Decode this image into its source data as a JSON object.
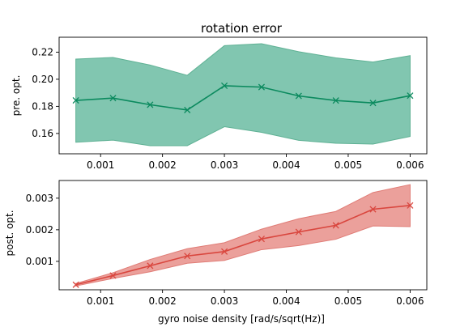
{
  "chart_data": [
    {
      "type": "line",
      "title": "rotation error",
      "xlabel": "",
      "ylabel": "pre. opt.",
      "xlim": [
        0.00033,
        0.00627
      ],
      "ylim": [
        0.145,
        0.231
      ],
      "xticks": [
        0.001,
        0.002,
        0.003,
        0.004,
        0.005,
        0.006
      ],
      "xtick_labels": [
        "0.001",
        "0.002",
        "0.003",
        "0.004",
        "0.005",
        "0.006"
      ],
      "yticks": [
        0.16,
        0.18,
        0.2,
        0.22
      ],
      "ytick_labels": [
        "0.16",
        "0.18",
        "0.20",
        "0.22"
      ],
      "grid": false,
      "colors": {
        "line": "#0b8a5e",
        "band": "#81c6b0",
        "band_edge": "#5fb194"
      },
      "series": [
        {
          "x": [
            0.0006,
            0.0012,
            0.0018,
            0.0024,
            0.003,
            0.0036,
            0.0042,
            0.0048,
            0.0054,
            0.006
          ],
          "values": [
            0.1844,
            0.1861,
            0.1812,
            0.1773,
            0.1952,
            0.1942,
            0.1877,
            0.1843,
            0.1825,
            0.1879
          ],
          "upper": [
            0.2149,
            0.2161,
            0.2105,
            0.2029,
            0.2248,
            0.2262,
            0.2203,
            0.2158,
            0.2127,
            0.2174
          ],
          "lower": [
            0.1535,
            0.1551,
            0.151,
            0.151,
            0.165,
            0.1608,
            0.1549,
            0.1528,
            0.1522,
            0.1578
          ]
        }
      ]
    },
    {
      "type": "line",
      "title": "",
      "xlabel": "gyro noise density [rad/s/sqrt(Hz)]",
      "ylabel": "post. opt.",
      "xlim": [
        0.00033,
        0.00627
      ],
      "ylim": [
        0.0001,
        0.00356
      ],
      "xticks": [
        0.001,
        0.002,
        0.003,
        0.004,
        0.005,
        0.006
      ],
      "xtick_labels": [
        "0.001",
        "0.002",
        "0.003",
        "0.004",
        "0.005",
        "0.006"
      ],
      "yticks": [
        0.001,
        0.002,
        0.003
      ],
      "ytick_labels": [
        "0.001",
        "0.002",
        "0.003"
      ],
      "grid": false,
      "colors": {
        "line": "#d9463e",
        "band": "#eba09b",
        "band_edge": "#e07c76"
      },
      "series": [
        {
          "x": [
            0.0006,
            0.0012,
            0.0018,
            0.0024,
            0.003,
            0.0036,
            0.0042,
            0.0048,
            0.0054,
            0.006
          ],
          "values": [
            0.00026,
            0.00055,
            0.00086,
            0.00117,
            0.00131,
            0.00171,
            0.00193,
            0.00214,
            0.00265,
            0.00277
          ],
          "upper": [
            0.0003,
            0.00064,
            0.00106,
            0.0014,
            0.00159,
            0.00202,
            0.00235,
            0.00258,
            0.00318,
            0.00343
          ],
          "lower": [
            0.00022,
            0.00046,
            0.00067,
            0.00094,
            0.00103,
            0.00137,
            0.0015,
            0.0017,
            0.00212,
            0.0021
          ]
        }
      ]
    }
  ]
}
